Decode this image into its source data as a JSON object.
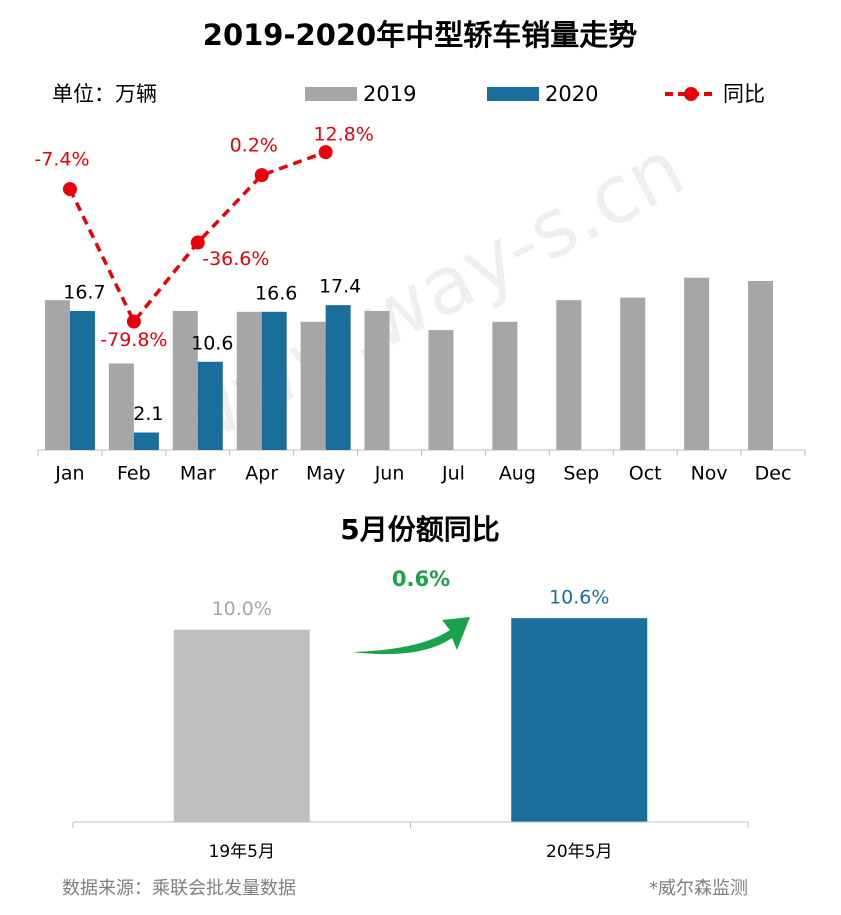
{
  "chart_data": [
    {
      "type": "bar",
      "title": "2019-2020年中型轿车销量走势",
      "unit_label": "单位：万辆",
      "categories": [
        "Jan",
        "Feb",
        "Mar",
        "Apr",
        "May",
        "Jun",
        "Jul",
        "Aug",
        "Sep",
        "Oct",
        "Nov",
        "Dec"
      ],
      "series": [
        {
          "name": "2019",
          "color": "#a6a6a6",
          "values": [
            18.0,
            10.4,
            16.7,
            16.6,
            15.4,
            16.7,
            14.4,
            15.4,
            18.0,
            18.3,
            20.7,
            20.3
          ]
        },
        {
          "name": "2020",
          "color": "#1a6e9b",
          "values": [
            16.7,
            2.1,
            10.6,
            16.6,
            17.4,
            null,
            null,
            null,
            null,
            null,
            null,
            null
          ]
        },
        {
          "name": "同比",
          "type": "line",
          "axis": "y2",
          "color": "#e8000b",
          "values": [
            -7.4,
            -79.8,
            -36.6,
            0.2,
            12.8,
            null,
            null,
            null,
            null,
            null,
            null,
            null
          ],
          "value_labels": [
            "-7.4%",
            "-79.8%",
            "-36.6%",
            "0.2%",
            "12.8%",
            null,
            null,
            null,
            null,
            null,
            null,
            null
          ]
        }
      ],
      "ylim": [
        0,
        40
      ],
      "y2lim": [
        -150,
        32
      ],
      "legend": "top"
    },
    {
      "type": "bar",
      "title": "5月份额同比",
      "categories": [
        "19年5月",
        "20年5月"
      ],
      "values": [
        10.0,
        10.6
      ],
      "value_labels": [
        "10.0%",
        "10.6%"
      ],
      "colors": [
        "#bfbfbf",
        "#1a6e9b"
      ],
      "annotation": "0.6%",
      "ylim": [
        0,
        13
      ]
    }
  ],
  "source": "数据来源：乘联会批发量数据",
  "note": "*威尔森监测",
  "watermark": "www.way-s.cn"
}
